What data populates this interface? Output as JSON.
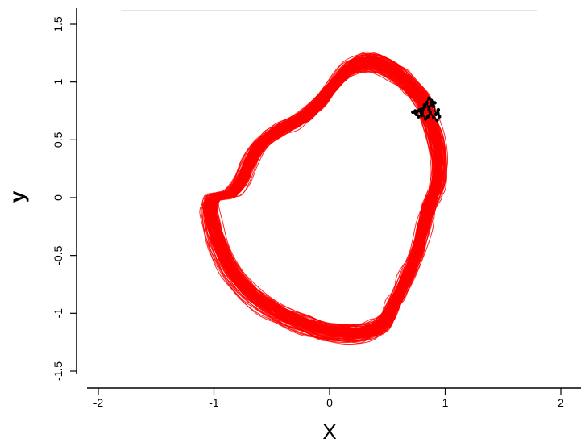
{
  "chart_data": {
    "type": "line",
    "title": "",
    "xlabel": "X",
    "ylabel": "y",
    "xlim": [
      -2.2,
      2.2
    ],
    "ylim": [
      -1.6,
      1.6
    ],
    "x_ticks": [
      -2,
      -1,
      0,
      1,
      2
    ],
    "y_ticks": [
      -1.5,
      -1,
      -0.5,
      0,
      0.5,
      1,
      1.5
    ],
    "x_tick_labels": [
      "-2",
      "-1",
      "0",
      "1",
      "2"
    ],
    "y_tick_labels": [
      "-1.5",
      "-1",
      "-0.5",
      "0",
      "0.5",
      "1",
      "1.5"
    ],
    "grid": false,
    "legend": "none",
    "series": [
      {
        "color": "#ff0000",
        "trajectory_count": 120,
        "loop": {
          "x": [
            0.85,
            0.92,
            0.95,
            0.93,
            0.9,
            0.86,
            0.82,
            0.75,
            0.66,
            0.6,
            0.56,
            0.53,
            0.49,
            0.44,
            0.36,
            0.26,
            0.12,
            -0.05,
            -0.2,
            -0.38,
            -0.55,
            -0.72,
            -0.86,
            -0.96,
            -1.02,
            -1.04,
            -1.01,
            -0.94,
            -0.85,
            -0.77,
            -0.7,
            -0.62,
            -0.52,
            -0.42,
            -0.3,
            -0.18,
            -0.06,
            0.05,
            0.14,
            0.24,
            0.34,
            0.44,
            0.56,
            0.66,
            0.72,
            0.8,
            0.85
          ],
          "y": [
            0.72,
            0.5,
            0.28,
            0.1,
            0.02,
            -0.08,
            -0.25,
            -0.5,
            -0.72,
            -0.85,
            -0.93,
            -1.0,
            -1.06,
            -1.11,
            -1.15,
            -1.17,
            -1.17,
            -1.15,
            -1.1,
            -1.03,
            -0.93,
            -0.8,
            -0.62,
            -0.42,
            -0.22,
            -0.08,
            0.0,
            0.02,
            0.04,
            0.14,
            0.3,
            0.44,
            0.53,
            0.6,
            0.66,
            0.74,
            0.86,
            1.0,
            1.1,
            1.16,
            1.18,
            1.16,
            1.1,
            1.02,
            0.95,
            0.86,
            0.72
          ]
        }
      },
      {
        "color": "#000000",
        "cluster": {
          "x": [
            0.72,
            0.75,
            0.78,
            0.8,
            0.82,
            0.84,
            0.86,
            0.88,
            0.9,
            0.92,
            0.94,
            0.95,
            0.93,
            0.9,
            0.87,
            0.85,
            0.83,
            0.8,
            0.77,
            0.74,
            0.88,
            0.91,
            0.86,
            0.82,
            0.79
          ],
          "y": [
            0.74,
            0.72,
            0.76,
            0.71,
            0.78,
            0.82,
            0.76,
            0.84,
            0.79,
            0.72,
            0.76,
            0.7,
            0.67,
            0.69,
            0.74,
            0.7,
            0.68,
            0.73,
            0.7,
            0.75,
            0.8,
            0.82,
            0.86,
            0.8,
            0.74
          ]
        }
      }
    ]
  }
}
